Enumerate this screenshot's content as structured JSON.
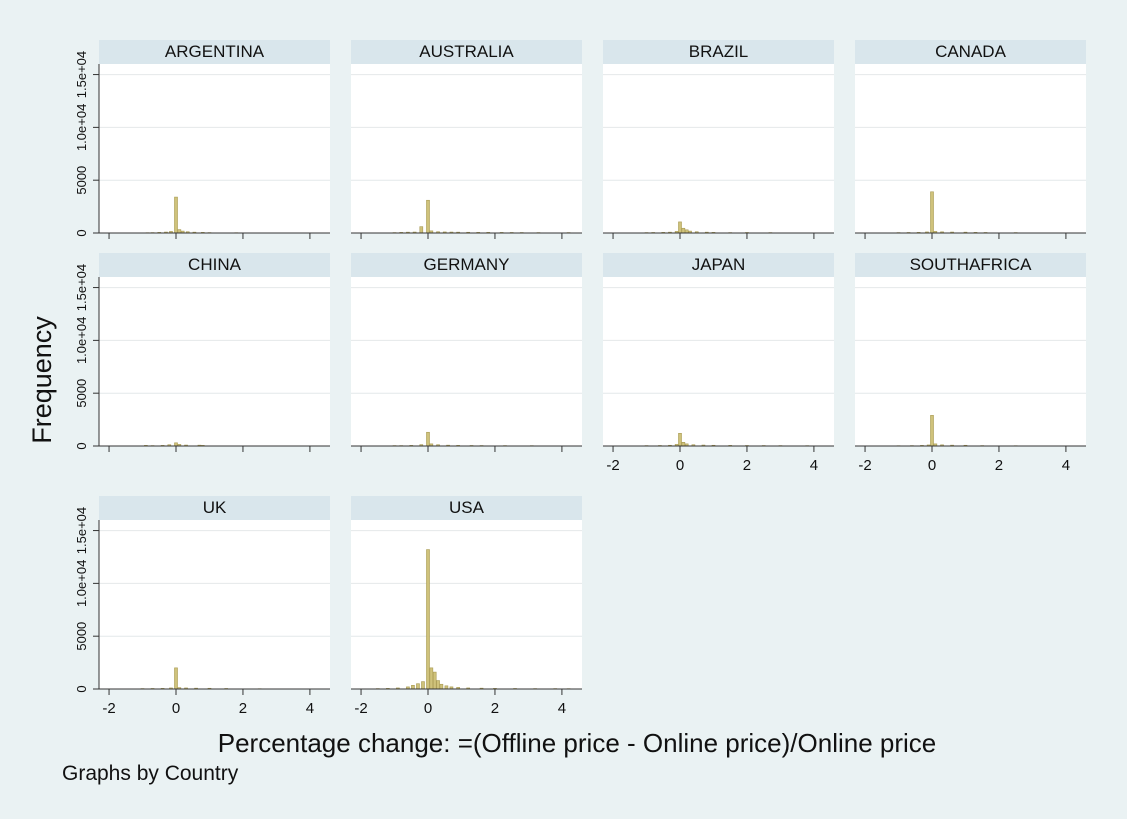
{
  "chart_data": {
    "type": "bar",
    "subtype": "histogram-small-multiples",
    "xlabel": "Percentage change: =(Offline price - Online price)/Online price",
    "ylabel": "Frequency",
    "note": "Graphs by Country",
    "xlim": [
      -2.3,
      4.6
    ],
    "ylim": [
      0,
      16000
    ],
    "xticks": [
      -2,
      0,
      2,
      4
    ],
    "yticks": [
      0,
      5000,
      10000,
      15000
    ],
    "ytick_labels": [
      "0",
      "5000",
      "1.0e+04",
      "1.5e+04"
    ],
    "grid": true,
    "colors": {
      "bar": "#cfc27b",
      "bar_stroke": "#a89a52",
      "strip": "#d9e6ec",
      "plot_bg": "#ffffff",
      "outer_bg": "#eaf2f3",
      "grid": "#e4e8ea"
    },
    "panels": [
      {
        "name": "ARGENTINA",
        "bars": [
          [
            -0.85,
            30
          ],
          [
            -0.7,
            40
          ],
          [
            -0.5,
            60
          ],
          [
            -0.3,
            90
          ],
          [
            -0.15,
            150
          ],
          [
            0,
            3400
          ],
          [
            0.1,
            320
          ],
          [
            0.2,
            180
          ],
          [
            0.35,
            120
          ],
          [
            0.55,
            80
          ],
          [
            0.8,
            60
          ],
          [
            1.0,
            40
          ],
          [
            1.8,
            30
          ]
        ]
      },
      {
        "name": "AUSTRALIA",
        "bars": [
          [
            -1.0,
            40
          ],
          [
            -0.8,
            60
          ],
          [
            -0.6,
            80
          ],
          [
            -0.4,
            90
          ],
          [
            -0.2,
            600
          ],
          [
            0,
            3100
          ],
          [
            0.1,
            200
          ],
          [
            0.3,
            120
          ],
          [
            0.5,
            100
          ],
          [
            0.7,
            90
          ],
          [
            0.9,
            80
          ],
          [
            1.2,
            70
          ],
          [
            1.5,
            60
          ],
          [
            1.8,
            60
          ],
          [
            2.2,
            55
          ],
          [
            2.5,
            50
          ],
          [
            2.8,
            45
          ],
          [
            3.3,
            40
          ],
          [
            4.2,
            40
          ]
        ]
      },
      {
        "name": "BRAZIL",
        "bars": [
          [
            -1.0,
            40
          ],
          [
            -0.8,
            50
          ],
          [
            -0.5,
            60
          ],
          [
            -0.3,
            80
          ],
          [
            -0.1,
            150
          ],
          [
            0,
            1050
          ],
          [
            0.1,
            450
          ],
          [
            0.2,
            300
          ],
          [
            0.3,
            180
          ],
          [
            0.5,
            120
          ],
          [
            0.8,
            80
          ],
          [
            1.0,
            60
          ],
          [
            1.5,
            40
          ],
          [
            2.0,
            50
          ],
          [
            2.7,
            40
          ]
        ]
      },
      {
        "name": "CANADA",
        "bars": [
          [
            -1.0,
            40
          ],
          [
            -0.7,
            50
          ],
          [
            -0.4,
            60
          ],
          [
            -0.15,
            100
          ],
          [
            0,
            3900
          ],
          [
            0.1,
            150
          ],
          [
            0.3,
            110
          ],
          [
            0.6,
            90
          ],
          [
            1.0,
            80
          ],
          [
            1.3,
            60
          ],
          [
            1.6,
            50
          ],
          [
            2.5,
            40
          ]
        ]
      },
      {
        "name": "CHINA",
        "bars": [
          [
            -0.9,
            60
          ],
          [
            -0.7,
            40
          ],
          [
            -0.4,
            60
          ],
          [
            -0.2,
            120
          ],
          [
            0,
            300
          ],
          [
            0.1,
            150
          ],
          [
            0.3,
            90
          ],
          [
            0.7,
            80
          ],
          [
            0.8,
            60
          ]
        ]
      },
      {
        "name": "GERMANY",
        "bars": [
          [
            -1.0,
            40
          ],
          [
            -0.8,
            40
          ],
          [
            -0.5,
            60
          ],
          [
            -0.2,
            130
          ],
          [
            0,
            1300
          ],
          [
            0.1,
            200
          ],
          [
            0.3,
            120
          ],
          [
            0.6,
            80
          ],
          [
            0.9,
            60
          ],
          [
            1.3,
            50
          ],
          [
            1.6,
            45
          ],
          [
            2.3,
            40
          ],
          [
            3.1,
            35
          ]
        ]
      },
      {
        "name": "JAPAN",
        "bars": [
          [
            -1.0,
            40
          ],
          [
            -0.6,
            50
          ],
          [
            -0.3,
            70
          ],
          [
            -0.1,
            150
          ],
          [
            0,
            1200
          ],
          [
            0.1,
            350
          ],
          [
            0.2,
            200
          ],
          [
            0.4,
            120
          ],
          [
            0.7,
            90
          ],
          [
            1.0,
            70
          ],
          [
            1.5,
            60
          ],
          [
            2.0,
            50
          ],
          [
            2.5,
            45
          ],
          [
            3.0,
            40
          ],
          [
            3.8,
            35
          ]
        ]
      },
      {
        "name": "SOUTHAFRICA",
        "bars": [
          [
            -1.0,
            30
          ],
          [
            -0.6,
            40
          ],
          [
            -0.3,
            60
          ],
          [
            -0.1,
            100
          ],
          [
            0,
            2900
          ],
          [
            0.1,
            200
          ],
          [
            0.3,
            110
          ],
          [
            0.6,
            80
          ],
          [
            1.0,
            70
          ],
          [
            1.5,
            40
          ],
          [
            2.5,
            30
          ]
        ]
      },
      {
        "name": "UK",
        "bars": [
          [
            -1.0,
            40
          ],
          [
            -0.7,
            50
          ],
          [
            -0.4,
            60
          ],
          [
            -0.15,
            100
          ],
          [
            0,
            2000
          ],
          [
            0.1,
            130
          ],
          [
            0.3,
            100
          ],
          [
            0.6,
            80
          ],
          [
            1.0,
            70
          ],
          [
            1.5,
            50
          ],
          [
            2.5,
            30
          ]
        ]
      },
      {
        "name": "USA",
        "bars": [
          [
            -1.5,
            40
          ],
          [
            -1.2,
            60
          ],
          [
            -0.9,
            100
          ],
          [
            -0.6,
            200
          ],
          [
            -0.45,
            350
          ],
          [
            -0.3,
            500
          ],
          [
            -0.15,
            700
          ],
          [
            0,
            13200
          ],
          [
            0.1,
            2000
          ],
          [
            0.2,
            1600
          ],
          [
            0.3,
            800
          ],
          [
            0.4,
            450
          ],
          [
            0.55,
            300
          ],
          [
            0.7,
            200
          ],
          [
            0.9,
            150
          ],
          [
            1.2,
            100
          ],
          [
            1.6,
            80
          ],
          [
            2.0,
            60
          ],
          [
            2.6,
            50
          ],
          [
            3.2,
            40
          ],
          [
            3.8,
            40
          ],
          [
            4.2,
            35
          ]
        ]
      }
    ]
  }
}
